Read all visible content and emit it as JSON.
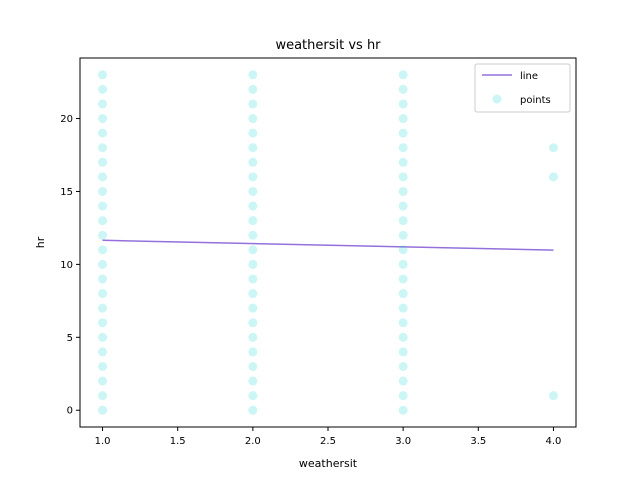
{
  "chart_data": {
    "type": "scatter",
    "title": "weathersit vs hr",
    "xlabel": "weathersit",
    "ylabel": "hr",
    "xlim": [
      0.85,
      4.15
    ],
    "ylim": [
      -1.15,
      24.15
    ],
    "xticks": [
      1.0,
      1.5,
      2.0,
      2.5,
      3.0,
      3.5,
      4.0
    ],
    "xtick_labels": [
      "1.0",
      "1.5",
      "2.0",
      "2.5",
      "3.0",
      "3.5",
      "4.0"
    ],
    "yticks": [
      0,
      5,
      10,
      15,
      20
    ],
    "ytick_labels": [
      "0",
      "5",
      "10",
      "15",
      "20"
    ],
    "grid": false,
    "legend_position": "top-right",
    "series": [
      {
        "name": "line",
        "kind": "line",
        "color": "#9370db",
        "x": [
          1.0,
          4.0
        ],
        "y": [
          11.65,
          10.98
        ]
      },
      {
        "name": "points",
        "kind": "scatter",
        "color": "#00ced1",
        "x": [
          1,
          1,
          1,
          1,
          1,
          1,
          1,
          1,
          1,
          1,
          1,
          1,
          1,
          1,
          1,
          1,
          1,
          1,
          1,
          1,
          1,
          1,
          1,
          1,
          2,
          2,
          2,
          2,
          2,
          2,
          2,
          2,
          2,
          2,
          2,
          2,
          2,
          2,
          2,
          2,
          2,
          2,
          2,
          2,
          2,
          2,
          2,
          2,
          3,
          3,
          3,
          3,
          3,
          3,
          3,
          3,
          3,
          3,
          3,
          3,
          3,
          3,
          3,
          3,
          3,
          3,
          3,
          3,
          3,
          3,
          3,
          3,
          4,
          4,
          4
        ],
        "y": [
          0,
          1,
          2,
          3,
          4,
          5,
          6,
          7,
          8,
          9,
          10,
          11,
          12,
          13,
          14,
          15,
          16,
          17,
          18,
          19,
          20,
          21,
          22,
          23,
          0,
          1,
          2,
          3,
          4,
          5,
          6,
          7,
          8,
          9,
          10,
          11,
          12,
          13,
          14,
          15,
          16,
          17,
          18,
          19,
          20,
          21,
          22,
          23,
          0,
          1,
          2,
          3,
          4,
          5,
          6,
          7,
          8,
          9,
          10,
          11,
          12,
          13,
          14,
          15,
          16,
          17,
          18,
          19,
          20,
          21,
          22,
          23,
          1,
          16,
          18
        ]
      }
    ]
  }
}
